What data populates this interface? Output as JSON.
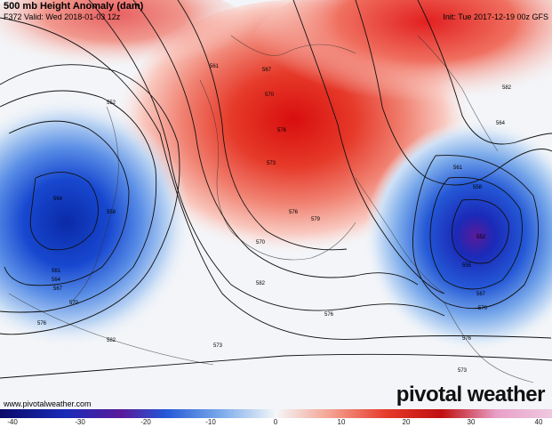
{
  "header": {
    "title": "500 mb Height Anomaly (dam)",
    "valid": "F372 Valid: Wed 2018-01-03 12z",
    "init": "Init: Tue 2017-12-19 00z GFS"
  },
  "footer": {
    "url": "www.pivotalweather.com",
    "brand": "pivotal weather"
  },
  "colorbar": {
    "ticks": [
      "-40",
      "-30",
      "-20",
      "-10",
      "0",
      "10",
      "20",
      "30",
      "40"
    ]
  },
  "contour_labels": {
    "west": [
      "552",
      "564",
      "558",
      "561",
      "564",
      "567",
      "570",
      "576",
      "573",
      "582"
    ],
    "center": [
      "561",
      "567",
      "570",
      "576",
      "573",
      "579",
      "576",
      "570",
      "582",
      "576"
    ],
    "east": [
      "561",
      "564",
      "558",
      "552",
      "555",
      "567",
      "570",
      "576",
      "573",
      "582"
    ]
  },
  "colors": {
    "neg_deep": "#5a1a9a",
    "neg": "#1030c8",
    "pos": "#e21a1a",
    "neutral": "#f4f6f8"
  }
}
